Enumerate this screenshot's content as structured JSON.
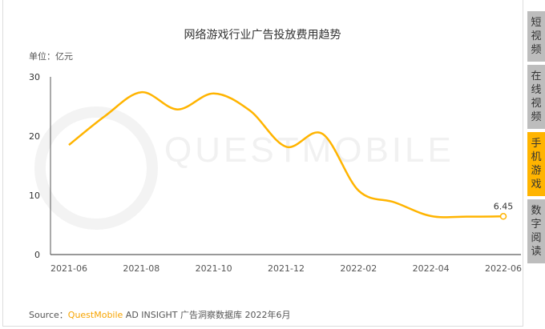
{
  "chart_data": {
    "type": "line",
    "title": "网络游戏行业广告投放费用趋势",
    "unit_label": "单位：亿元",
    "x": [
      "2021-06",
      "2021-07",
      "2021-08",
      "2021-09",
      "2021-10",
      "2021-11",
      "2021-12",
      "2022-01",
      "2022-02",
      "2022-03",
      "2022-04",
      "2022-05",
      "2022-06"
    ],
    "x_tick_labels": [
      "2021-06",
      "2021-08",
      "2021-10",
      "2021-12",
      "2022-02",
      "2022-04",
      "2022-06"
    ],
    "values": [
      18.5,
      23.4,
      27.4,
      24.5,
      27.2,
      24.3,
      18.2,
      20.4,
      10.8,
      8.8,
      6.5,
      6.4,
      6.45
    ],
    "ylim": [
      0,
      30
    ],
    "y_ticks": [
      "0",
      "10",
      "20",
      "30"
    ],
    "end_label": "6.45",
    "line_color": "#ffb400",
    "grid": false,
    "watermark": "QUESTMOBILE"
  },
  "source": {
    "prefix": "Source：",
    "brand": "QuestMobile",
    "rest": " AD INSIGHT 广告洞察数据库 2022年6月"
  },
  "tabs": [
    {
      "label": "短视频",
      "active": false
    },
    {
      "label": "在线视频",
      "active": false
    },
    {
      "label": "手机游戏",
      "active": true
    },
    {
      "label": "数字阅读",
      "active": false
    }
  ]
}
